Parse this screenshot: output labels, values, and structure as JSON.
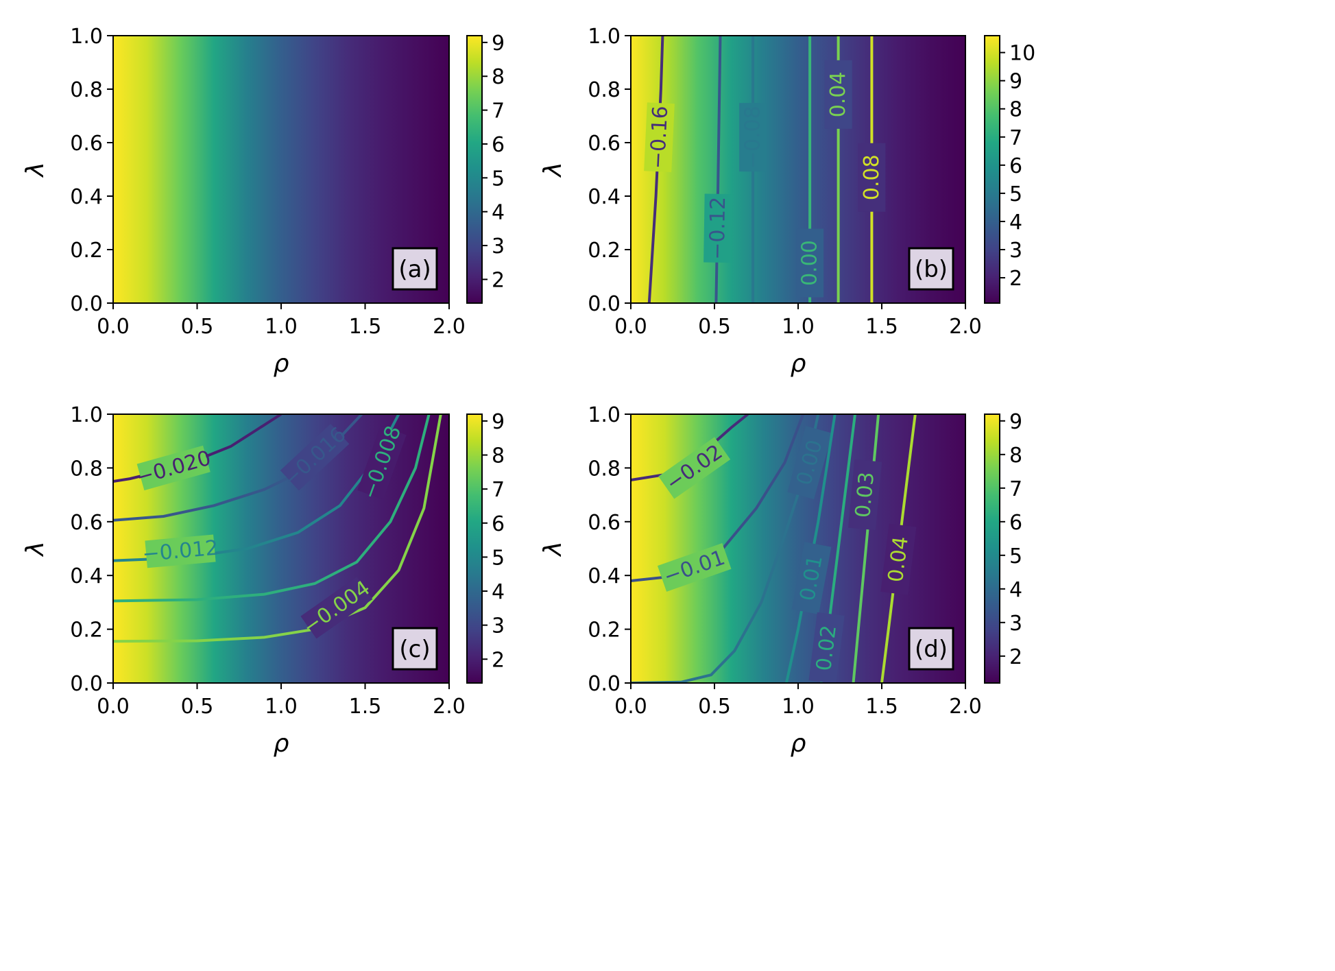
{
  "chart_data": [
    {
      "type": "heatmap",
      "panel_label": "(a)",
      "xlabel": "ρ",
      "ylabel": "λ",
      "xlim": [
        0.0,
        2.0
      ],
      "ylim": [
        0.0,
        1.0
      ],
      "xticks": [
        "0.0",
        "0.5",
        "1.0",
        "1.5",
        "2.0"
      ],
      "yticks": [
        "0.0",
        "0.2",
        "0.4",
        "0.6",
        "0.8",
        "1.0"
      ],
      "colormap": "viridis",
      "color_range": [
        1.3,
        9.2
      ],
      "colorbar_ticks": [
        "2",
        "3",
        "4",
        "5",
        "6",
        "7",
        "8",
        "9"
      ],
      "colorbar_tick_values": [
        2,
        3,
        4,
        5,
        6,
        7,
        8,
        9
      ],
      "field_x": [
        0.0,
        0.2,
        0.4,
        0.6,
        0.8,
        1.0,
        1.2,
        1.4,
        1.6,
        1.8,
        2.0
      ],
      "field_values": [
        9.2,
        8.6,
        7.4,
        6.0,
        4.7,
        3.7,
        2.9,
        2.3,
        1.9,
        1.6,
        1.3
      ],
      "contours": []
    },
    {
      "type": "heatmap",
      "panel_label": "(b)",
      "xlabel": "ρ",
      "ylabel": "λ",
      "xlim": [
        0.0,
        2.0
      ],
      "ylim": [
        0.0,
        1.0
      ],
      "xticks": [
        "0.0",
        "0.5",
        "1.0",
        "1.5",
        "2.0"
      ],
      "yticks": [
        "0.0",
        "0.2",
        "0.4",
        "0.6",
        "0.8",
        "1.0"
      ],
      "colormap": "viridis",
      "color_range": [
        1.1,
        10.6
      ],
      "colorbar_ticks": [
        "2",
        "3",
        "4",
        "5",
        "6",
        "7",
        "8",
        "9",
        "10"
      ],
      "colorbar_tick_values": [
        2,
        3,
        4,
        5,
        6,
        7,
        8,
        9,
        10
      ],
      "field_x": [
        0.0,
        0.2,
        0.4,
        0.6,
        0.8,
        1.0,
        1.2,
        1.4,
        1.6,
        1.8,
        2.0
      ],
      "field_values": [
        10.6,
        9.6,
        8.0,
        6.5,
        5.1,
        4.0,
        3.1,
        2.4,
        1.8,
        1.4,
        1.1
      ],
      "contour_range": [
        -0.2,
        0.1
      ],
      "contours": [
        {
          "level": -0.16,
          "label": "−0.16",
          "x": [
            0.11,
            0.13,
            0.15,
            0.165,
            0.18,
            0.19
          ],
          "y": [
            0.0,
            0.2,
            0.4,
            0.6,
            0.8,
            1.0
          ],
          "label_at": [
            0.17,
            0.62
          ]
        },
        {
          "level": -0.12,
          "label": "−0.12",
          "x": [
            0.51,
            0.515,
            0.52,
            0.525,
            0.53,
            0.535
          ],
          "y": [
            0.0,
            0.2,
            0.4,
            0.6,
            0.8,
            1.0
          ],
          "label_at": [
            0.52,
            0.28
          ]
        },
        {
          "level": -0.08,
          "label": "−0.08",
          "x": [
            0.73,
            0.73,
            0.73,
            0.73,
            0.73,
            0.73
          ],
          "y": [
            0.0,
            0.2,
            0.4,
            0.6,
            0.8,
            1.0
          ],
          "label_at": [
            0.73,
            0.62
          ]
        },
        {
          "level": 0.0,
          "label": "0.00",
          "x": [
            1.07,
            1.07,
            1.07,
            1.07,
            1.07,
            1.07
          ],
          "y": [
            0.0,
            0.2,
            0.4,
            0.6,
            0.8,
            1.0
          ],
          "label_at": [
            1.07,
            0.15
          ]
        },
        {
          "level": 0.04,
          "label": "0.04",
          "x": [
            1.24,
            1.24,
            1.24,
            1.24,
            1.24,
            1.24
          ],
          "y": [
            0.0,
            0.2,
            0.4,
            0.6,
            0.8,
            1.0
          ],
          "label_at": [
            1.24,
            0.78
          ]
        },
        {
          "level": 0.08,
          "label": "0.08",
          "x": [
            1.44,
            1.44,
            1.44,
            1.44,
            1.44,
            1.44
          ],
          "y": [
            0.0,
            0.2,
            0.4,
            0.6,
            0.8,
            1.0
          ],
          "label_at": [
            1.44,
            0.47
          ]
        }
      ]
    },
    {
      "type": "heatmap",
      "panel_label": "(c)",
      "xlabel": "ρ",
      "ylabel": "λ",
      "xlim": [
        0.0,
        2.0
      ],
      "ylim": [
        0.0,
        1.0
      ],
      "xticks": [
        "0.0",
        "0.5",
        "1.0",
        "1.5",
        "2.0"
      ],
      "yticks": [
        "0.0",
        "0.2",
        "0.4",
        "0.6",
        "0.8",
        "1.0"
      ],
      "colormap": "viridis",
      "color_range": [
        1.3,
        9.2
      ],
      "colorbar_ticks": [
        "2",
        "3",
        "4",
        "5",
        "6",
        "7",
        "8",
        "9"
      ],
      "colorbar_tick_values": [
        2,
        3,
        4,
        5,
        6,
        7,
        8,
        9
      ],
      "field_x": [
        0.0,
        0.2,
        0.4,
        0.6,
        0.8,
        1.0,
        1.2,
        1.4,
        1.6,
        1.8,
        2.0
      ],
      "field_values": [
        9.2,
        8.6,
        7.4,
        6.0,
        4.7,
        3.7,
        2.9,
        2.3,
        1.9,
        1.6,
        1.3
      ],
      "contour_range": [
        -0.022,
        0.0
      ],
      "contours": [
        {
          "level": -0.02,
          "label": "−0.020",
          "x": [
            0.0,
            0.1,
            0.3,
            0.5,
            0.7,
            0.85,
            1.0
          ],
          "y": [
            0.75,
            0.76,
            0.79,
            0.83,
            0.88,
            0.94,
            1.0
          ],
          "label_at": [
            0.36,
            0.8
          ]
        },
        {
          "level": -0.016,
          "label": "−0.016",
          "x": [
            0.0,
            0.3,
            0.6,
            0.9,
            1.1,
            1.3,
            1.48
          ],
          "y": [
            0.605,
            0.62,
            0.66,
            0.72,
            0.78,
            0.88,
            1.0
          ],
          "label_at": [
            1.2,
            0.84
          ]
        },
        {
          "level": -0.012,
          "label": "−0.012",
          "x": [
            0.0,
            0.4,
            0.8,
            1.1,
            1.35,
            1.55,
            1.7
          ],
          "y": [
            0.455,
            0.465,
            0.5,
            0.56,
            0.66,
            0.82,
            1.0
          ],
          "label_at": [
            0.4,
            0.49
          ]
        },
        {
          "level": -0.008,
          "label": "−0.008",
          "x": [
            0.0,
            0.5,
            0.9,
            1.2,
            1.45,
            1.65,
            1.8,
            1.88
          ],
          "y": [
            0.305,
            0.31,
            0.33,
            0.37,
            0.45,
            0.6,
            0.8,
            1.0
          ],
          "label_at": [
            1.6,
            0.82
          ]
        },
        {
          "level": -0.004,
          "label": "−0.004",
          "x": [
            0.0,
            0.5,
            0.9,
            1.2,
            1.5,
            1.7,
            1.85,
            1.95
          ],
          "y": [
            0.155,
            0.157,
            0.17,
            0.2,
            0.28,
            0.42,
            0.65,
            1.0
          ],
          "label_at": [
            1.33,
            0.28
          ]
        }
      ]
    },
    {
      "type": "heatmap",
      "panel_label": "(d)",
      "xlabel": "ρ",
      "ylabel": "λ",
      "xlim": [
        0.0,
        2.0
      ],
      "ylim": [
        0.0,
        1.0
      ],
      "xticks": [
        "0.0",
        "0.5",
        "1.0",
        "1.5",
        "2.0"
      ],
      "yticks": [
        "0.0",
        "0.2",
        "0.4",
        "0.6",
        "0.8",
        "1.0"
      ],
      "colormap": "viridis",
      "color_range": [
        1.2,
        9.2
      ],
      "colorbar_ticks": [
        "2",
        "3",
        "4",
        "5",
        "6",
        "7",
        "8",
        "9"
      ],
      "colorbar_tick_values": [
        2,
        3,
        4,
        5,
        6,
        7,
        8,
        9
      ],
      "field_x": [
        0.0,
        0.2,
        0.4,
        0.6,
        0.8,
        1.0,
        1.2,
        1.4,
        1.6,
        1.8,
        2.0
      ],
      "field_values": [
        9.2,
        8.6,
        7.4,
        6.0,
        4.7,
        3.7,
        2.9,
        2.3,
        1.9,
        1.6,
        1.3
      ],
      "contour_range": [
        -0.03,
        0.05
      ],
      "contours": [
        {
          "level": -0.02,
          "label": "−0.02",
          "x": [
            0.0,
            0.2,
            0.4,
            0.6,
            0.7
          ],
          "y": [
            0.755,
            0.775,
            0.84,
            0.95,
            1.0
          ],
          "label_at": [
            0.38,
            0.8
          ]
        },
        {
          "level": -0.01,
          "label": "−0.01",
          "x": [
            0.0,
            0.3,
            0.55,
            0.75,
            0.92,
            1.03
          ],
          "y": [
            0.38,
            0.4,
            0.5,
            0.65,
            0.82,
            1.0
          ],
          "label_at": [
            0.38,
            0.43
          ]
        },
        {
          "level": 0.0,
          "label": "0.00",
          "x": [
            0.0,
            0.3,
            0.48,
            0.62,
            0.78,
            0.92,
            1.05,
            1.12
          ],
          "y": [
            0.0,
            0.003,
            0.03,
            0.12,
            0.3,
            0.55,
            0.8,
            1.0
          ],
          "label_at": [
            1.07,
            0.82
          ]
        },
        {
          "level": 0.01,
          "label": "0.01",
          "x": [
            0.93,
            1.0,
            1.06,
            1.12,
            1.17,
            1.22
          ],
          "y": [
            0.0,
            0.2,
            0.4,
            0.6,
            0.8,
            1.0
          ],
          "label_at": [
            1.08,
            0.39
          ]
        },
        {
          "level": 0.02,
          "label": "0.02",
          "x": [
            1.14,
            1.18,
            1.22,
            1.26,
            1.3,
            1.34
          ],
          "y": [
            0.0,
            0.2,
            0.4,
            0.6,
            0.8,
            1.0
          ],
          "label_at": [
            1.17,
            0.13
          ]
        },
        {
          "level": 0.03,
          "label": "0.03",
          "x": [
            1.33,
            1.36,
            1.39,
            1.42,
            1.45,
            1.48
          ],
          "y": [
            0.0,
            0.2,
            0.4,
            0.6,
            0.8,
            1.0
          ],
          "label_at": [
            1.4,
            0.7
          ]
        },
        {
          "level": 0.04,
          "label": "0.04",
          "x": [
            1.5,
            1.54,
            1.58,
            1.62,
            1.66,
            1.7
          ],
          "y": [
            0.0,
            0.2,
            0.4,
            0.6,
            0.8,
            1.0
          ],
          "label_at": [
            1.6,
            0.46
          ]
        }
      ]
    }
  ]
}
